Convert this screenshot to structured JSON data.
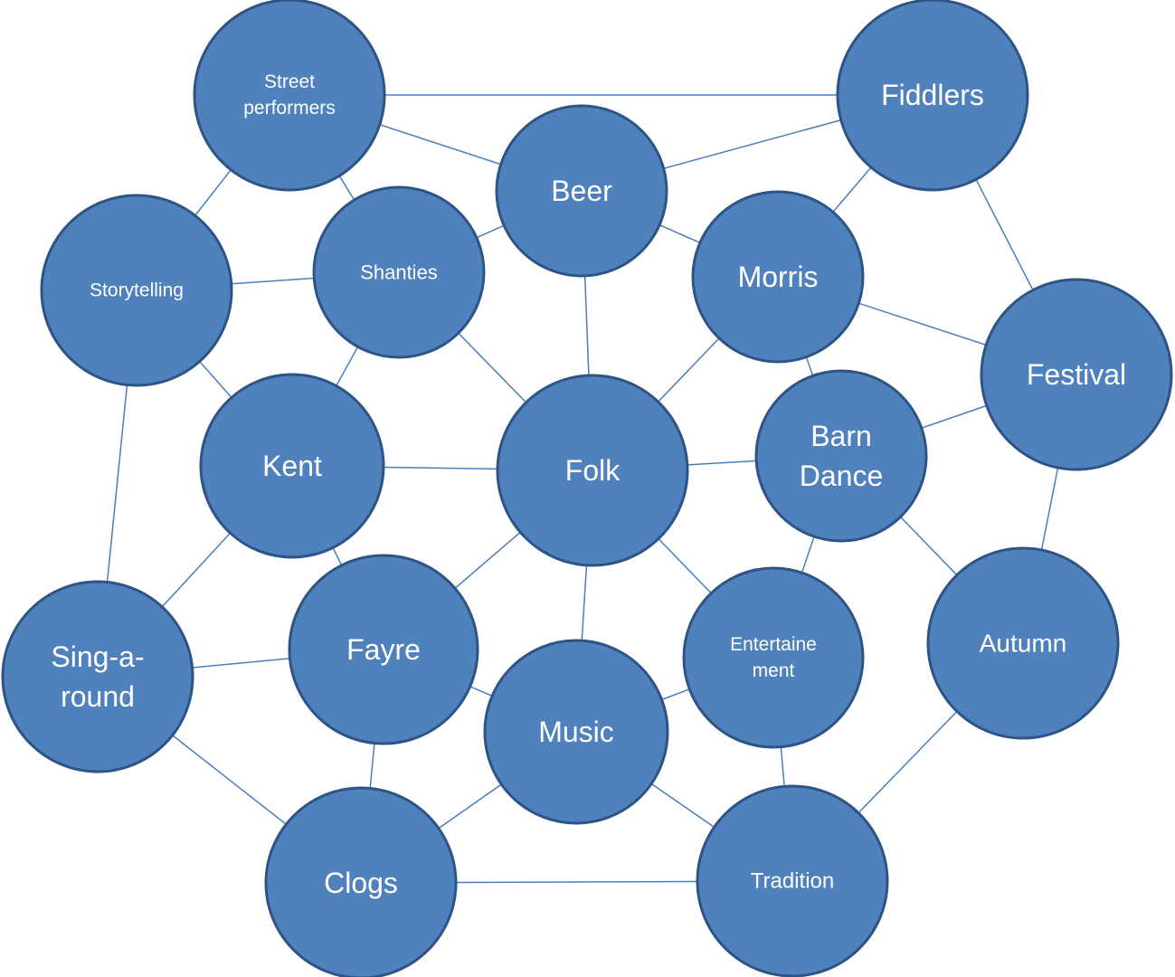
{
  "diagram": {
    "nodes": [
      {
        "id": "street-performers",
        "lines": [
          "Street",
          "performers"
        ]
      },
      {
        "id": "fiddlers",
        "lines": [
          "Fiddlers"
        ]
      },
      {
        "id": "beer",
        "lines": [
          "Beer"
        ]
      },
      {
        "id": "storytelling",
        "lines": [
          "Storytelling"
        ]
      },
      {
        "id": "shanties",
        "lines": [
          "Shanties"
        ]
      },
      {
        "id": "morris",
        "lines": [
          "Morris"
        ]
      },
      {
        "id": "festival",
        "lines": [
          "Festival"
        ]
      },
      {
        "id": "kent",
        "lines": [
          "Kent"
        ]
      },
      {
        "id": "folk",
        "lines": [
          "Folk"
        ]
      },
      {
        "id": "barn-dance",
        "lines": [
          "Barn",
          "Dance"
        ]
      },
      {
        "id": "sing-a-round",
        "lines": [
          "Sing-a-",
          "round"
        ]
      },
      {
        "id": "fayre",
        "lines": [
          "Fayre"
        ]
      },
      {
        "id": "entertainment",
        "lines": [
          "Entertaine",
          "ment"
        ]
      },
      {
        "id": "autumn",
        "lines": [
          "Autumn"
        ]
      },
      {
        "id": "music",
        "lines": [
          "Music"
        ]
      },
      {
        "id": "clogs",
        "lines": [
          "Clogs"
        ]
      },
      {
        "id": "tradition",
        "lines": [
          "Tradition"
        ]
      }
    ],
    "edges": [
      [
        "street-performers",
        "fiddlers"
      ],
      [
        "street-performers",
        "beer"
      ],
      [
        "street-performers",
        "storytelling"
      ],
      [
        "street-performers",
        "shanties"
      ],
      [
        "fiddlers",
        "beer"
      ],
      [
        "fiddlers",
        "morris"
      ],
      [
        "fiddlers",
        "festival"
      ],
      [
        "beer",
        "shanties"
      ],
      [
        "beer",
        "morris"
      ],
      [
        "beer",
        "folk"
      ],
      [
        "storytelling",
        "shanties"
      ],
      [
        "storytelling",
        "kent"
      ],
      [
        "storytelling",
        "sing-a-round"
      ],
      [
        "shanties",
        "kent"
      ],
      [
        "shanties",
        "folk"
      ],
      [
        "morris",
        "folk"
      ],
      [
        "morris",
        "festival"
      ],
      [
        "morris",
        "barn-dance"
      ],
      [
        "festival",
        "barn-dance"
      ],
      [
        "festival",
        "autumn"
      ],
      [
        "kent",
        "folk"
      ],
      [
        "kent",
        "sing-a-round"
      ],
      [
        "kent",
        "fayre"
      ],
      [
        "folk",
        "barn-dance"
      ],
      [
        "folk",
        "fayre"
      ],
      [
        "folk",
        "music"
      ],
      [
        "folk",
        "entertainment"
      ],
      [
        "barn-dance",
        "entertainment"
      ],
      [
        "barn-dance",
        "autumn"
      ],
      [
        "sing-a-round",
        "fayre"
      ],
      [
        "sing-a-round",
        "clogs"
      ],
      [
        "fayre",
        "music"
      ],
      [
        "fayre",
        "clogs"
      ],
      [
        "entertainment",
        "music"
      ],
      [
        "entertainment",
        "tradition"
      ],
      [
        "autumn",
        "tradition"
      ],
      [
        "music",
        "clogs"
      ],
      [
        "music",
        "tradition"
      ],
      [
        "clogs",
        "tradition"
      ]
    ]
  }
}
